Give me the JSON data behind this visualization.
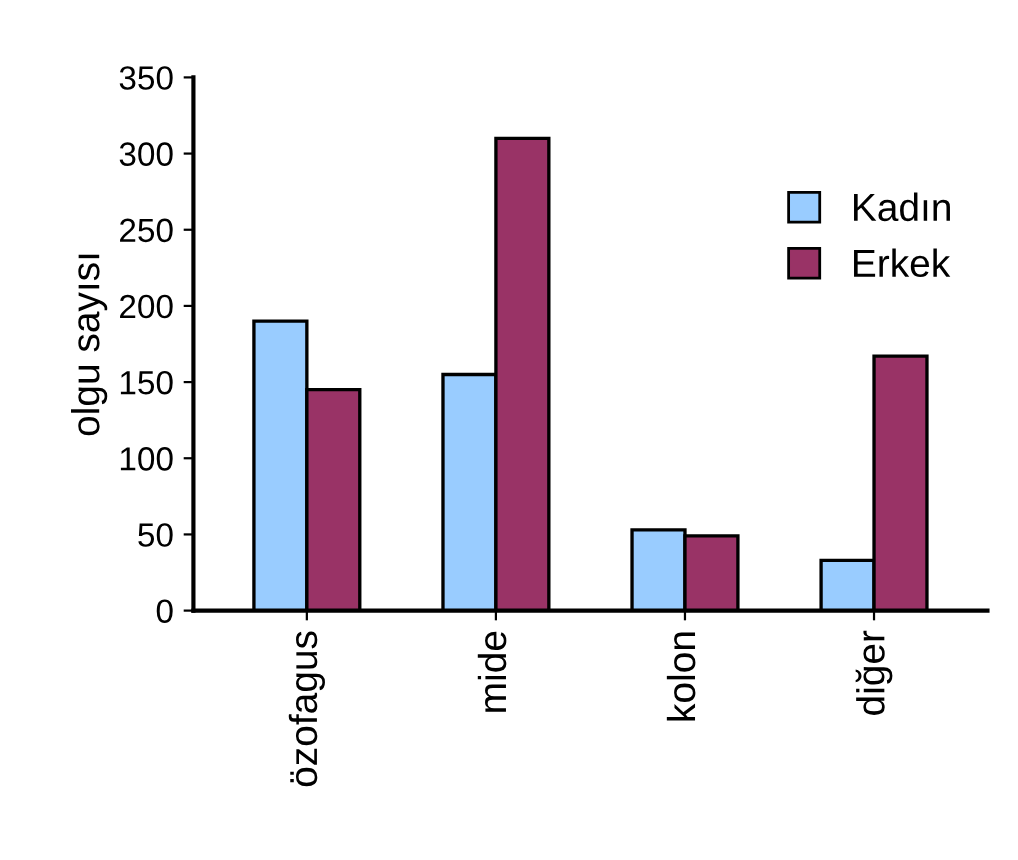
{
  "chart_data": {
    "type": "bar",
    "ylabel": "olgu sayısı",
    "categories": [
      "özofagus",
      "mide",
      "kolon",
      "diğer"
    ],
    "series": [
      {
        "name": "Kadın",
        "color": "#99ccff",
        "values": [
          190,
          155,
          53,
          33
        ]
      },
      {
        "name": "Erkek",
        "color": "#993366",
        "values": [
          145,
          310,
          49,
          167
        ]
      }
    ],
    "ylim": [
      0,
      350
    ],
    "yticks": [
      0,
      50,
      100,
      150,
      200,
      250,
      300,
      350
    ],
    "grid": false,
    "legend": "top right"
  }
}
